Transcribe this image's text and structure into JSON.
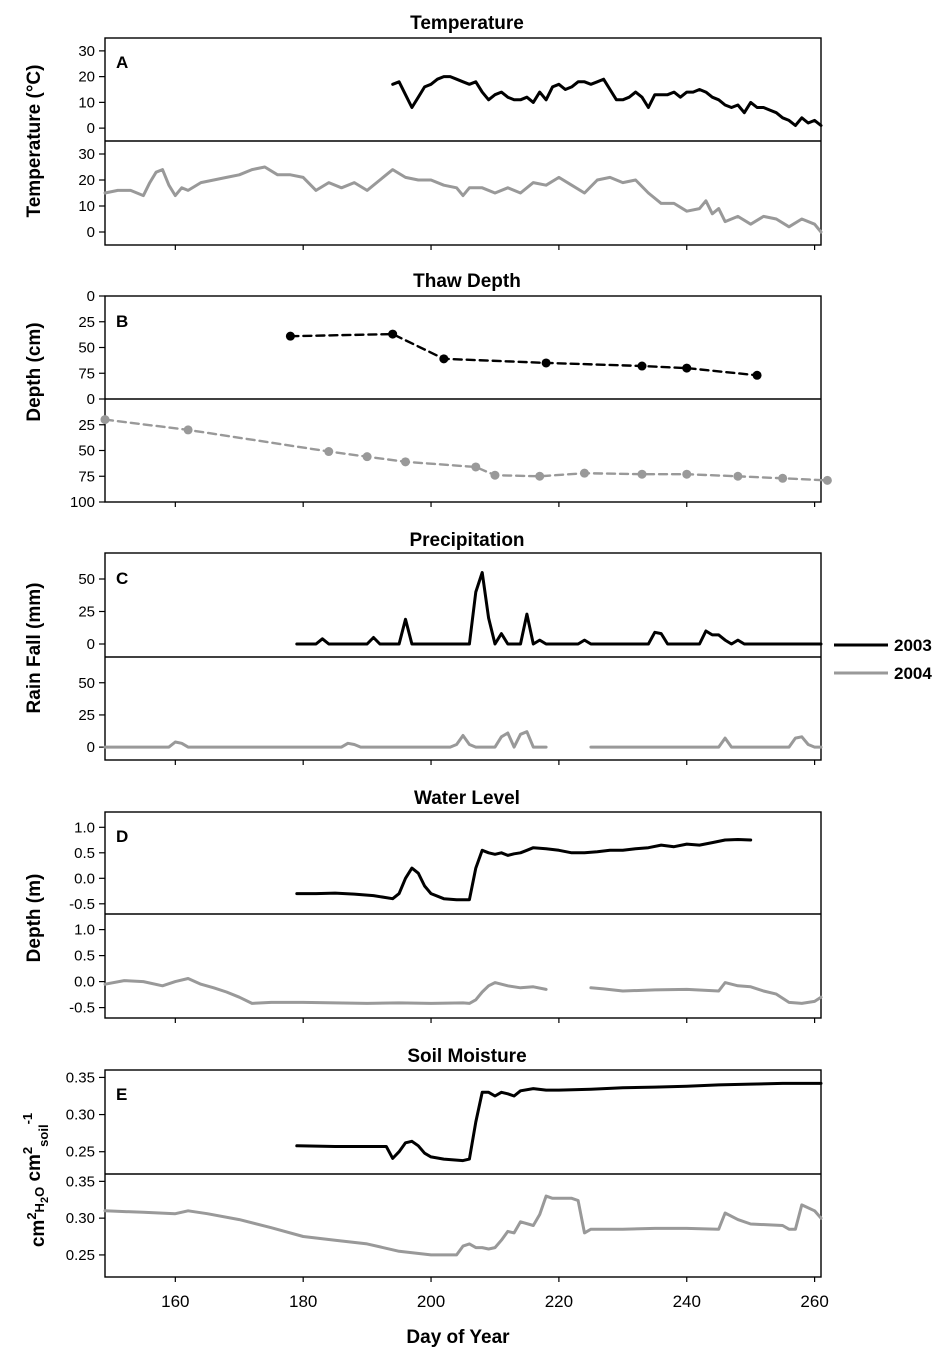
{
  "figure": {
    "xlabel": "Day of Year",
    "x_ticks": [
      160,
      180,
      200,
      220,
      240,
      260
    ],
    "legend": [
      {
        "label": "2003",
        "color": "#000000"
      },
      {
        "label": "2004",
        "color": "#999999"
      }
    ]
  },
  "chart_data": [
    {
      "type": "line",
      "panel_letter": "A",
      "title": "Temperature",
      "ylabel": "Temperature (°C)",
      "xlim": [
        149,
        261
      ],
      "x_ticks": [
        160,
        180,
        200,
        220,
        240,
        260
      ],
      "y_ticks": [
        0,
        10,
        20,
        30
      ],
      "ylim": [
        -5,
        35
      ],
      "series": [
        {
          "name": "2003",
          "color": "#000000",
          "x": [
            194,
            195,
            196,
            197,
            198,
            199,
            200,
            201,
            202,
            203,
            204,
            205,
            206,
            207,
            208,
            209,
            210,
            211,
            212,
            213,
            214,
            215,
            216,
            217,
            218,
            219,
            220,
            221,
            222,
            223,
            224,
            225,
            226,
            227,
            228,
            229,
            230,
            231,
            232,
            233,
            234,
            235,
            236,
            237,
            238,
            239,
            240,
            241,
            242,
            243,
            244,
            245,
            246,
            247,
            248,
            249,
            250,
            251,
            252,
            253,
            254,
            255,
            256,
            257,
            258,
            259,
            260,
            261
          ],
          "y": [
            17,
            18,
            13,
            8,
            12,
            16,
            17,
            19,
            20,
            20,
            19,
            18,
            17,
            18,
            14,
            11,
            13,
            14,
            12,
            11,
            11,
            12,
            10,
            14,
            11,
            16,
            17,
            15,
            16,
            18,
            18,
            17,
            18,
            19,
            15,
            11,
            11,
            12,
            14,
            12,
            8,
            13,
            13,
            13,
            14,
            12,
            14,
            14,
            15,
            14,
            12,
            11,
            9,
            8,
            9,
            6,
            10,
            8,
            8,
            7,
            6,
            4,
            3,
            1,
            4,
            2,
            3,
            1
          ]
        },
        {
          "name": "2004",
          "color": "#999999",
          "x": [
            149,
            151,
            153,
            155,
            156,
            157,
            158,
            159,
            160,
            161,
            162,
            164,
            166,
            168,
            170,
            172,
            174,
            176,
            178,
            180,
            182,
            184,
            186,
            188,
            190,
            192,
            194,
            196,
            198,
            200,
            202,
            204,
            205,
            206,
            208,
            210,
            212,
            214,
            216,
            218,
            220,
            222,
            224,
            226,
            228,
            230,
            232,
            234,
            236,
            238,
            240,
            242,
            243,
            244,
            245,
            246,
            248,
            250,
            252,
            254,
            256,
            258,
            260,
            261
          ],
          "y": [
            15,
            16,
            16,
            14,
            19,
            23,
            24,
            18,
            14,
            17,
            16,
            19,
            20,
            21,
            22,
            24,
            25,
            22,
            22,
            21,
            16,
            19,
            17,
            19,
            16,
            20,
            24,
            21,
            20,
            20,
            18,
            17,
            14,
            17,
            17,
            15,
            17,
            15,
            19,
            18,
            21,
            18,
            15,
            20,
            21,
            19,
            20,
            15,
            11,
            11,
            8,
            9,
            12,
            7,
            9,
            4,
            6,
            3,
            6,
            5,
            2,
            5,
            3,
            0
          ]
        }
      ]
    },
    {
      "type": "line",
      "panel_letter": "B",
      "title": "Thaw Depth",
      "ylabel": "Depth (cm)",
      "xlim": [
        149,
        261
      ],
      "x_ticks": [
        160,
        180,
        200,
        220,
        240,
        260
      ],
      "y_ticks_top": [
        0,
        25,
        50,
        75
      ],
      "y_ticks_bottom": [
        0,
        25,
        50,
        75,
        100
      ],
      "ylim": [
        0,
        100
      ],
      "y_inverted": true,
      "series": [
        {
          "name": "2003",
          "color": "#000000",
          "style": "dashed-markers",
          "x": [
            178,
            194,
            202,
            218,
            233,
            240,
            251
          ],
          "y": [
            39,
            37,
            61,
            65,
            68,
            70,
            77
          ]
        },
        {
          "name": "2004",
          "color": "#999999",
          "style": "dashed-markers",
          "x": [
            149,
            162,
            184,
            190,
            196,
            207,
            210,
            217,
            224,
            233,
            240,
            248,
            255,
            262
          ],
          "y": [
            20,
            30,
            51,
            56,
            61,
            66,
            74,
            75,
            72,
            73,
            73,
            75,
            77,
            79
          ]
        }
      ]
    },
    {
      "type": "line",
      "panel_letter": "C",
      "title": "Precipitation",
      "ylabel": "Rain Fall (mm)",
      "xlim": [
        149,
        261
      ],
      "x_ticks": [
        160,
        180,
        200,
        220,
        240,
        260
      ],
      "y_ticks": [
        0,
        25,
        50
      ],
      "ylim": [
        -10,
        70
      ],
      "series": [
        {
          "name": "2003",
          "color": "#000000",
          "x": [
            179,
            182,
            183,
            184,
            190,
            191,
            192,
            195,
            196,
            197,
            198,
            206,
            207,
            208,
            209,
            210,
            211,
            212,
            213,
            214,
            215,
            216,
            217,
            218,
            223,
            224,
            225,
            234,
            235,
            236,
            237,
            242,
            243,
            244,
            245,
            246,
            247,
            248,
            249,
            261
          ],
          "y": [
            0,
            0,
            4,
            0,
            0,
            5,
            0,
            0,
            19,
            0,
            0,
            0,
            40,
            55,
            20,
            0,
            8,
            0,
            0,
            0,
            23,
            0,
            3,
            0,
            0,
            3,
            0,
            0,
            9,
            8,
            0,
            0,
            10,
            7,
            7,
            3,
            0,
            3,
            0,
            0
          ]
        },
        {
          "name": "2004",
          "color": "#999999",
          "x": [
            149,
            159,
            160,
            161,
            162,
            186,
            187,
            188,
            189,
            203,
            204,
            205,
            206,
            207,
            210,
            211,
            212,
            213,
            214,
            215,
            216,
            217,
            218
          ],
          "y": [
            0,
            0,
            4,
            3,
            0,
            0,
            3,
            2,
            0,
            0,
            2,
            9,
            2,
            0,
            0,
            8,
            11,
            0,
            10,
            12,
            0,
            0,
            0
          ]
        },
        {
          "name": "2004",
          "color": "#999999",
          "x": [
            225,
            245,
            246,
            247,
            256,
            257,
            258,
            259,
            260,
            261
          ],
          "y": [
            0,
            0,
            7,
            0,
            0,
            7,
            8,
            2,
            0,
            0
          ]
        }
      ]
    },
    {
      "type": "line",
      "panel_letter": "D",
      "title": "Water Level",
      "ylabel": "Depth (m)",
      "xlim": [
        149,
        261
      ],
      "x_ticks": [
        160,
        180,
        200,
        220,
        240,
        260
      ],
      "y_ticks": [
        -0.5,
        0.0,
        0.5,
        1.0
      ],
      "ylim": [
        -0.7,
        1.3
      ],
      "series": [
        {
          "name": "2003",
          "color": "#000000",
          "x": [
            179,
            182,
            185,
            188,
            191,
            194,
            195,
            196,
            197,
            198,
            199,
            200,
            202,
            204,
            206,
            207,
            208,
            209,
            210,
            211,
            212,
            213,
            214,
            215,
            216,
            218,
            220,
            222,
            224,
            226,
            228,
            230,
            232,
            234,
            236,
            238,
            240,
            242,
            244,
            246,
            248,
            250
          ],
          "y": [
            -0.3,
            -0.3,
            -0.29,
            -0.31,
            -0.34,
            -0.4,
            -0.3,
            0.0,
            0.2,
            0.1,
            -0.15,
            -0.3,
            -0.4,
            -0.42,
            -0.42,
            0.2,
            0.55,
            0.5,
            0.47,
            0.5,
            0.45,
            0.48,
            0.5,
            0.55,
            0.6,
            0.58,
            0.55,
            0.5,
            0.5,
            0.52,
            0.55,
            0.55,
            0.58,
            0.6,
            0.65,
            0.62,
            0.67,
            0.65,
            0.7,
            0.75,
            0.76,
            0.75
          ]
        },
        {
          "name": "2004",
          "color": "#999999",
          "x": [
            149,
            152,
            155,
            158,
            160,
            162,
            164,
            166,
            168,
            170,
            172,
            175,
            180,
            185,
            190,
            195,
            200,
            205,
            206,
            207,
            208,
            209,
            210,
            212,
            214,
            216,
            218
          ],
          "y": [
            -0.05,
            0.02,
            0.0,
            -0.08,
            0.0,
            0.06,
            -0.05,
            -0.12,
            -0.2,
            -0.3,
            -0.42,
            -0.4,
            -0.4,
            -0.41,
            -0.42,
            -0.41,
            -0.42,
            -0.41,
            -0.42,
            -0.35,
            -0.2,
            -0.08,
            -0.02,
            -0.08,
            -0.12,
            -0.1,
            -0.15
          ]
        },
        {
          "name": "2004",
          "color": "#999999",
          "x": [
            225,
            227,
            230,
            235,
            240,
            245,
            246,
            248,
            250,
            252,
            254,
            256,
            258,
            260,
            261
          ],
          "y": [
            -0.12,
            -0.14,
            -0.18,
            -0.16,
            -0.15,
            -0.18,
            -0.02,
            -0.08,
            -0.1,
            -0.18,
            -0.24,
            -0.4,
            -0.42,
            -0.38,
            -0.3
          ]
        }
      ]
    },
    {
      "type": "line",
      "panel_letter": "E",
      "title": "Soil Moisture",
      "ylabel": "cm²H₂O cm²soil⁻¹",
      "ylabel_parts": {
        "base1": "cm",
        "sup1": "2",
        "sub1": "H",
        "sub2": "2",
        "sub3": "O",
        "base2": " cm",
        "sup2": "2",
        "sub4": "soil",
        "sup3": "-1"
      },
      "xlim": [
        149,
        261
      ],
      "x_ticks": [
        160,
        180,
        200,
        220,
        240,
        260
      ],
      "y_ticks": [
        0.25,
        0.3,
        0.35
      ],
      "ylim": [
        0.22,
        0.36
      ],
      "series": [
        {
          "name": "2003",
          "color": "#000000",
          "x": [
            179,
            185,
            190,
            193,
            194,
            195,
            196,
            197,
            198,
            199,
            200,
            202,
            205,
            206,
            207,
            208,
            209,
            210,
            211,
            212,
            213,
            214,
            216,
            218,
            220,
            225,
            230,
            235,
            240,
            245,
            250,
            255,
            261
          ],
          "y": [
            0.258,
            0.257,
            0.257,
            0.257,
            0.241,
            0.25,
            0.262,
            0.264,
            0.258,
            0.248,
            0.243,
            0.24,
            0.238,
            0.24,
            0.29,
            0.33,
            0.33,
            0.325,
            0.33,
            0.328,
            0.325,
            0.332,
            0.335,
            0.333,
            0.333,
            0.334,
            0.336,
            0.337,
            0.338,
            0.34,
            0.341,
            0.342,
            0.342
          ]
        },
        {
          "name": "2004",
          "color": "#999999",
          "x": [
            149,
            155,
            160,
            162,
            165,
            170,
            175,
            180,
            185,
            190,
            195,
            200,
            204,
            205,
            206,
            207,
            208,
            209,
            210,
            211,
            212,
            213,
            214,
            216,
            217,
            218,
            219,
            222,
            223,
            224,
            225,
            230,
            235,
            240,
            245,
            246,
            248,
            250,
            255,
            256,
            257,
            258,
            260,
            261
          ],
          "y": [
            0.31,
            0.308,
            0.306,
            0.31,
            0.306,
            0.298,
            0.287,
            0.275,
            0.27,
            0.265,
            0.255,
            0.25,
            0.25,
            0.262,
            0.265,
            0.26,
            0.26,
            0.258,
            0.26,
            0.27,
            0.282,
            0.28,
            0.295,
            0.29,
            0.305,
            0.33,
            0.327,
            0.327,
            0.324,
            0.28,
            0.285,
            0.285,
            0.286,
            0.286,
            0.285,
            0.307,
            0.298,
            0.292,
            0.29,
            0.285,
            0.285,
            0.318,
            0.31,
            0.3
          ]
        }
      ]
    }
  ]
}
